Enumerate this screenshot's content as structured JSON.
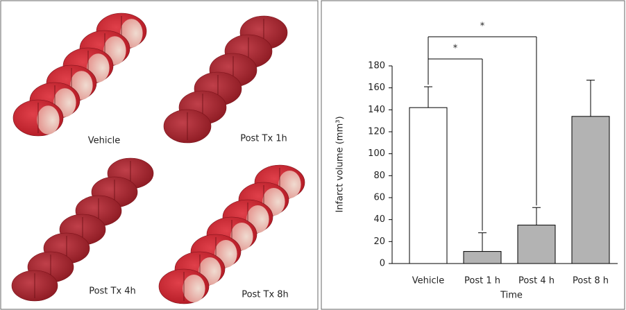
{
  "photo_panel": {
    "labels": [
      "Vehicle",
      "Post Tx 1h",
      "Post Tx 4h",
      "Post Tx 8h"
    ]
  },
  "chart_data": {
    "type": "bar",
    "categories": [
      "Vehicle",
      "Post 1 h",
      "Post 4 h",
      "Post 8 h"
    ],
    "values": [
      142,
      11,
      35,
      134
    ],
    "errors": [
      19,
      17,
      16,
      33
    ],
    "colors": [
      "#ffffff",
      "#b3b3b3",
      "#b3b3b3",
      "#b3b3b3"
    ],
    "ylabel": "Infarct volume (mm³)",
    "xlabel": "Time",
    "ylim": [
      0,
      180
    ],
    "yticks": [
      0,
      20,
      40,
      60,
      80,
      100,
      120,
      140,
      160,
      180
    ],
    "significance": [
      {
        "from": 0,
        "to": 1,
        "label": "*"
      },
      {
        "from": 0,
        "to": 2,
        "label": "*"
      }
    ]
  }
}
